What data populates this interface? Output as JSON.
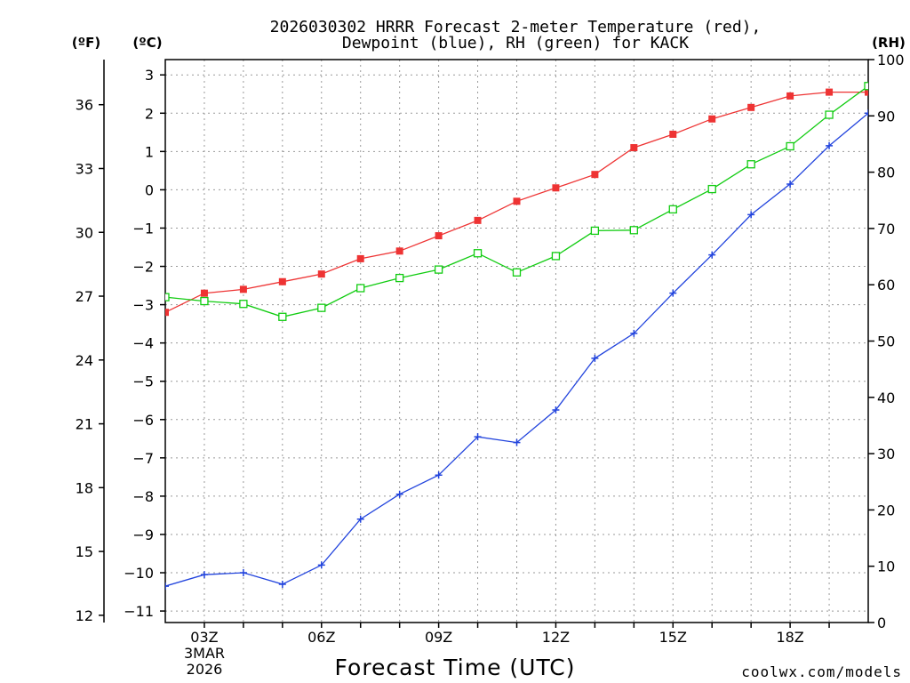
{
  "chart_data": {
    "type": "line",
    "title": "2026030302 HRRR Forecast 2-meter Temperature (red),",
    "subtitle": "Dewpoint (blue), RH (green) for KACK",
    "xlabel": "Forecast Time (UTC)",
    "credit": "coolwx.com/models",
    "colors": {
      "temperature": "#ee3333",
      "dewpoint": "#2244dd",
      "rh": "#11cc11",
      "grid": "#999999"
    },
    "x_hours": [
      2,
      3,
      4,
      5,
      6,
      7,
      8,
      9,
      10,
      11,
      12,
      13,
      14,
      15,
      16,
      17,
      18,
      19,
      20
    ],
    "x_ticks": [
      {
        "hour": 3,
        "label": "03Z"
      },
      {
        "hour": 6,
        "label": "06Z"
      },
      {
        "hour": 9,
        "label": "09Z"
      },
      {
        "hour": 12,
        "label": "12Z"
      },
      {
        "hour": 15,
        "label": "15Z"
      },
      {
        "hour": 18,
        "label": "18Z"
      }
    ],
    "date_label": [
      "3MAR",
      "2026"
    ],
    "xlim": [
      2,
      20
    ],
    "left_axis_c": {
      "unit": "(ºC)",
      "range": [
        -11.3,
        3.4
      ],
      "ticks": [
        3,
        2,
        1,
        0,
        -1,
        -2,
        -3,
        -4,
        -5,
        -6,
        -7,
        -8,
        -9,
        -10,
        -11
      ]
    },
    "left_axis_f": {
      "unit": "(ºF)",
      "ticks": [
        36,
        33,
        30,
        27,
        24,
        21,
        18,
        15,
        12
      ]
    },
    "right_axis_rh": {
      "unit": "(RH)",
      "range": [
        0,
        100
      ],
      "ticks": [
        100,
        90,
        80,
        70,
        60,
        50,
        40,
        30,
        20,
        10,
        0
      ]
    },
    "series": [
      {
        "name": "Temperature",
        "unit": "C",
        "marker": "filled-square",
        "values": [
          -3.2,
          -2.7,
          -2.6,
          -2.4,
          -2.2,
          -1.8,
          -1.6,
          -1.2,
          -0.8,
          -0.3,
          0.05,
          0.4,
          1.1,
          1.45,
          1.85,
          2.15,
          2.45,
          2.55,
          2.55
        ]
      },
      {
        "name": "Dewpoint",
        "unit": "C",
        "marker": "plus",
        "values": [
          -10.35,
          -10.05,
          -10.0,
          -10.3,
          -9.8,
          -8.6,
          -7.95,
          -7.45,
          -6.45,
          -6.6,
          -5.75,
          -4.4,
          -3.75,
          -2.7,
          -1.7,
          -0.65,
          0.15,
          1.15,
          2.0
        ]
      },
      {
        "name": "RH",
        "unit": "%",
        "marker": "open-square",
        "values": [
          57.8,
          57.1,
          56.6,
          54.3,
          55.9,
          59.4,
          61.2,
          62.7,
          65.6,
          62.2,
          65.1,
          69.6,
          69.7,
          73.4,
          77.0,
          81.4,
          84.6,
          90.2,
          95.3
        ]
      }
    ]
  }
}
